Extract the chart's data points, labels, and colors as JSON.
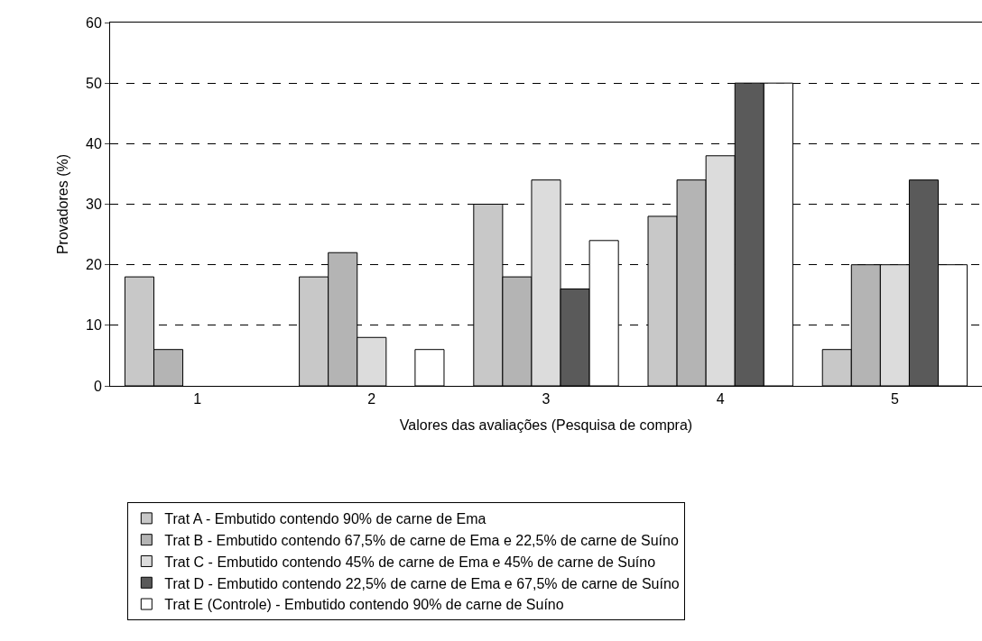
{
  "chart_data": {
    "type": "bar",
    "xlabel": "Valores das avaliações (Pesquisa de compra)",
    "ylabel": "Provadores (%)",
    "categories": [
      "1",
      "2",
      "3",
      "4",
      "5"
    ],
    "series": [
      {
        "name": "Trat A - Embutido contendo 90% de carne de Ema",
        "color": "#c8c8c8",
        "values": [
          18,
          18,
          30,
          28,
          6
        ]
      },
      {
        "name": "Trat B - Embutido contendo 67,5% de carne de Ema e 22,5% de carne de Suíno",
        "color": "#b4b4b4",
        "values": [
          6,
          22,
          18,
          34,
          20
        ]
      },
      {
        "name": "Trat C - Embutido contendo 45% de carne de Ema e 45% de carne de Suíno",
        "color": "#dcdcdc",
        "values": [
          0,
          8,
          34,
          38,
          20
        ]
      },
      {
        "name": "Trat D - Embutido contendo 22,5% de carne de Ema e 67,5% de carne de Suíno",
        "color": "#5a5a5a",
        "values": [
          0,
          0,
          16,
          50,
          34
        ]
      },
      {
        "name": "Trat E (Controle) - Embutido contendo 90% de carne de Suíno",
        "color": "#ffffff",
        "values": [
          0,
          6,
          24,
          50,
          20
        ]
      }
    ],
    "ylim": [
      0,
      60
    ],
    "yticks": [
      0,
      10,
      20,
      30,
      40,
      50,
      60
    ],
    "grid": "y",
    "legend": "bottom"
  }
}
